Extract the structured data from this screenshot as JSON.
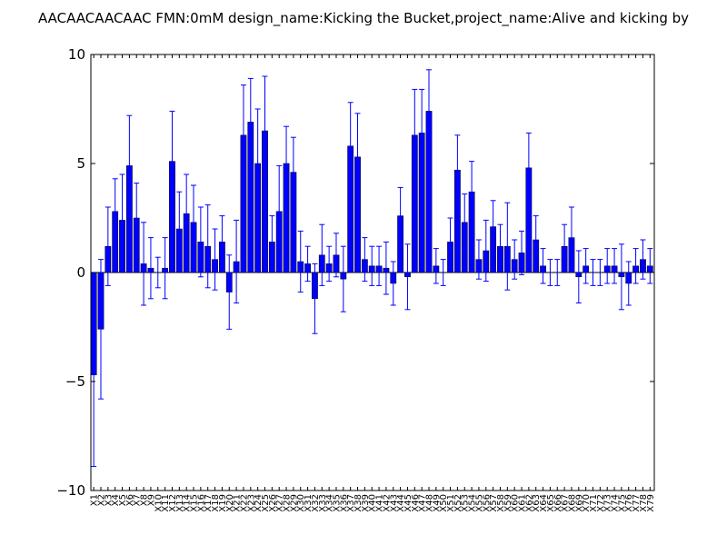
{
  "chart_data": {
    "type": "bar",
    "title": "AACAACAACAAC  FMN:0mM  design_name:Kicking the Bucket,project_name:Alive and kicking by",
    "xlabel": "",
    "ylabel": "",
    "ylim": [
      -10,
      10
    ],
    "yticks": [
      "10",
      "5",
      "0",
      "−5",
      "−10"
    ],
    "categories": [
      "X1",
      "X2",
      "X3",
      "X4",
      "X5",
      "X6",
      "X7",
      "X8",
      "X9",
      "X10",
      "X11",
      "X12",
      "X13",
      "X14",
      "X15",
      "X16",
      "X17",
      "X18",
      "X19",
      "X20",
      "X21",
      "X22",
      "X23",
      "X24",
      "X25",
      "X26",
      "X27",
      "X28",
      "X29",
      "X30",
      "X31",
      "X32",
      "X33",
      "X34",
      "X35",
      "X36",
      "X37",
      "X38",
      "X39",
      "X40",
      "X41",
      "X42",
      "X43",
      "X44",
      "X45",
      "X46",
      "X47",
      "X48",
      "X49",
      "X50",
      "X51",
      "X52",
      "X53",
      "X54",
      "X55",
      "X56",
      "X57",
      "X58",
      "X59",
      "X60",
      "X61",
      "X62",
      "X63",
      "X64",
      "X65",
      "X66",
      "X67",
      "X68",
      "X69",
      "X70",
      "X71",
      "X72",
      "X73",
      "X74",
      "X75",
      "X76",
      "X77",
      "X78",
      "X79"
    ],
    "values": [
      -4.7,
      -2.6,
      1.2,
      2.8,
      2.4,
      4.9,
      2.5,
      0.4,
      0.2,
      0.0,
      0.2,
      5.1,
      2.0,
      2.7,
      2.3,
      1.4,
      1.2,
      0.6,
      1.4,
      -0.9,
      0.5,
      6.3,
      6.9,
      5.0,
      6.5,
      1.4,
      2.8,
      5.0,
      4.6,
      0.5,
      0.4,
      -1.2,
      0.8,
      0.4,
      0.8,
      -0.3,
      5.8,
      5.3,
      0.6,
      0.3,
      0.3,
      0.2,
      -0.5,
      2.6,
      -0.2,
      6.3,
      6.4,
      7.4,
      0.3,
      0.0,
      1.4,
      4.7,
      2.3,
      3.7,
      0.6,
      1.0,
      2.1,
      1.2,
      1.2,
      0.6,
      0.9,
      4.8,
      1.5,
      0.3,
      0.0,
      0.0,
      1.2,
      1.6,
      -0.2,
      0.3,
      0.0,
      0.0,
      0.3,
      0.3,
      -0.2,
      -0.5,
      0.3,
      0.6,
      0.3
    ],
    "errors": [
      4.2,
      3.2,
      1.8,
      1.5,
      2.1,
      2.3,
      1.6,
      1.9,
      1.4,
      0.7,
      1.4,
      2.3,
      1.7,
      1.8,
      1.7,
      1.6,
      1.9,
      1.4,
      1.2,
      1.7,
      1.9,
      2.3,
      2.0,
      2.5,
      2.5,
      1.2,
      2.1,
      1.7,
      1.6,
      1.4,
      0.8,
      1.6,
      1.4,
      0.8,
      1.0,
      1.5,
      2.0,
      2.0,
      1.0,
      0.9,
      0.9,
      1.2,
      1.0,
      1.3,
      1.5,
      2.1,
      2.0,
      1.9,
      0.8,
      0.6,
      1.1,
      1.6,
      1.3,
      1.4,
      0.9,
      1.4,
      1.2,
      1.0,
      2.0,
      0.9,
      1.0,
      1.6,
      1.1,
      0.8,
      0.6,
      0.6,
      1.0,
      1.4,
      1.2,
      0.8,
      0.6,
      0.6,
      0.8,
      0.8,
      1.5,
      1.0,
      0.8,
      0.9,
      0.8
    ],
    "bar_color": "#0000ff",
    "edge_color": "#000000",
    "error_color": "#0000ff",
    "grid": false,
    "legend": "none"
  }
}
